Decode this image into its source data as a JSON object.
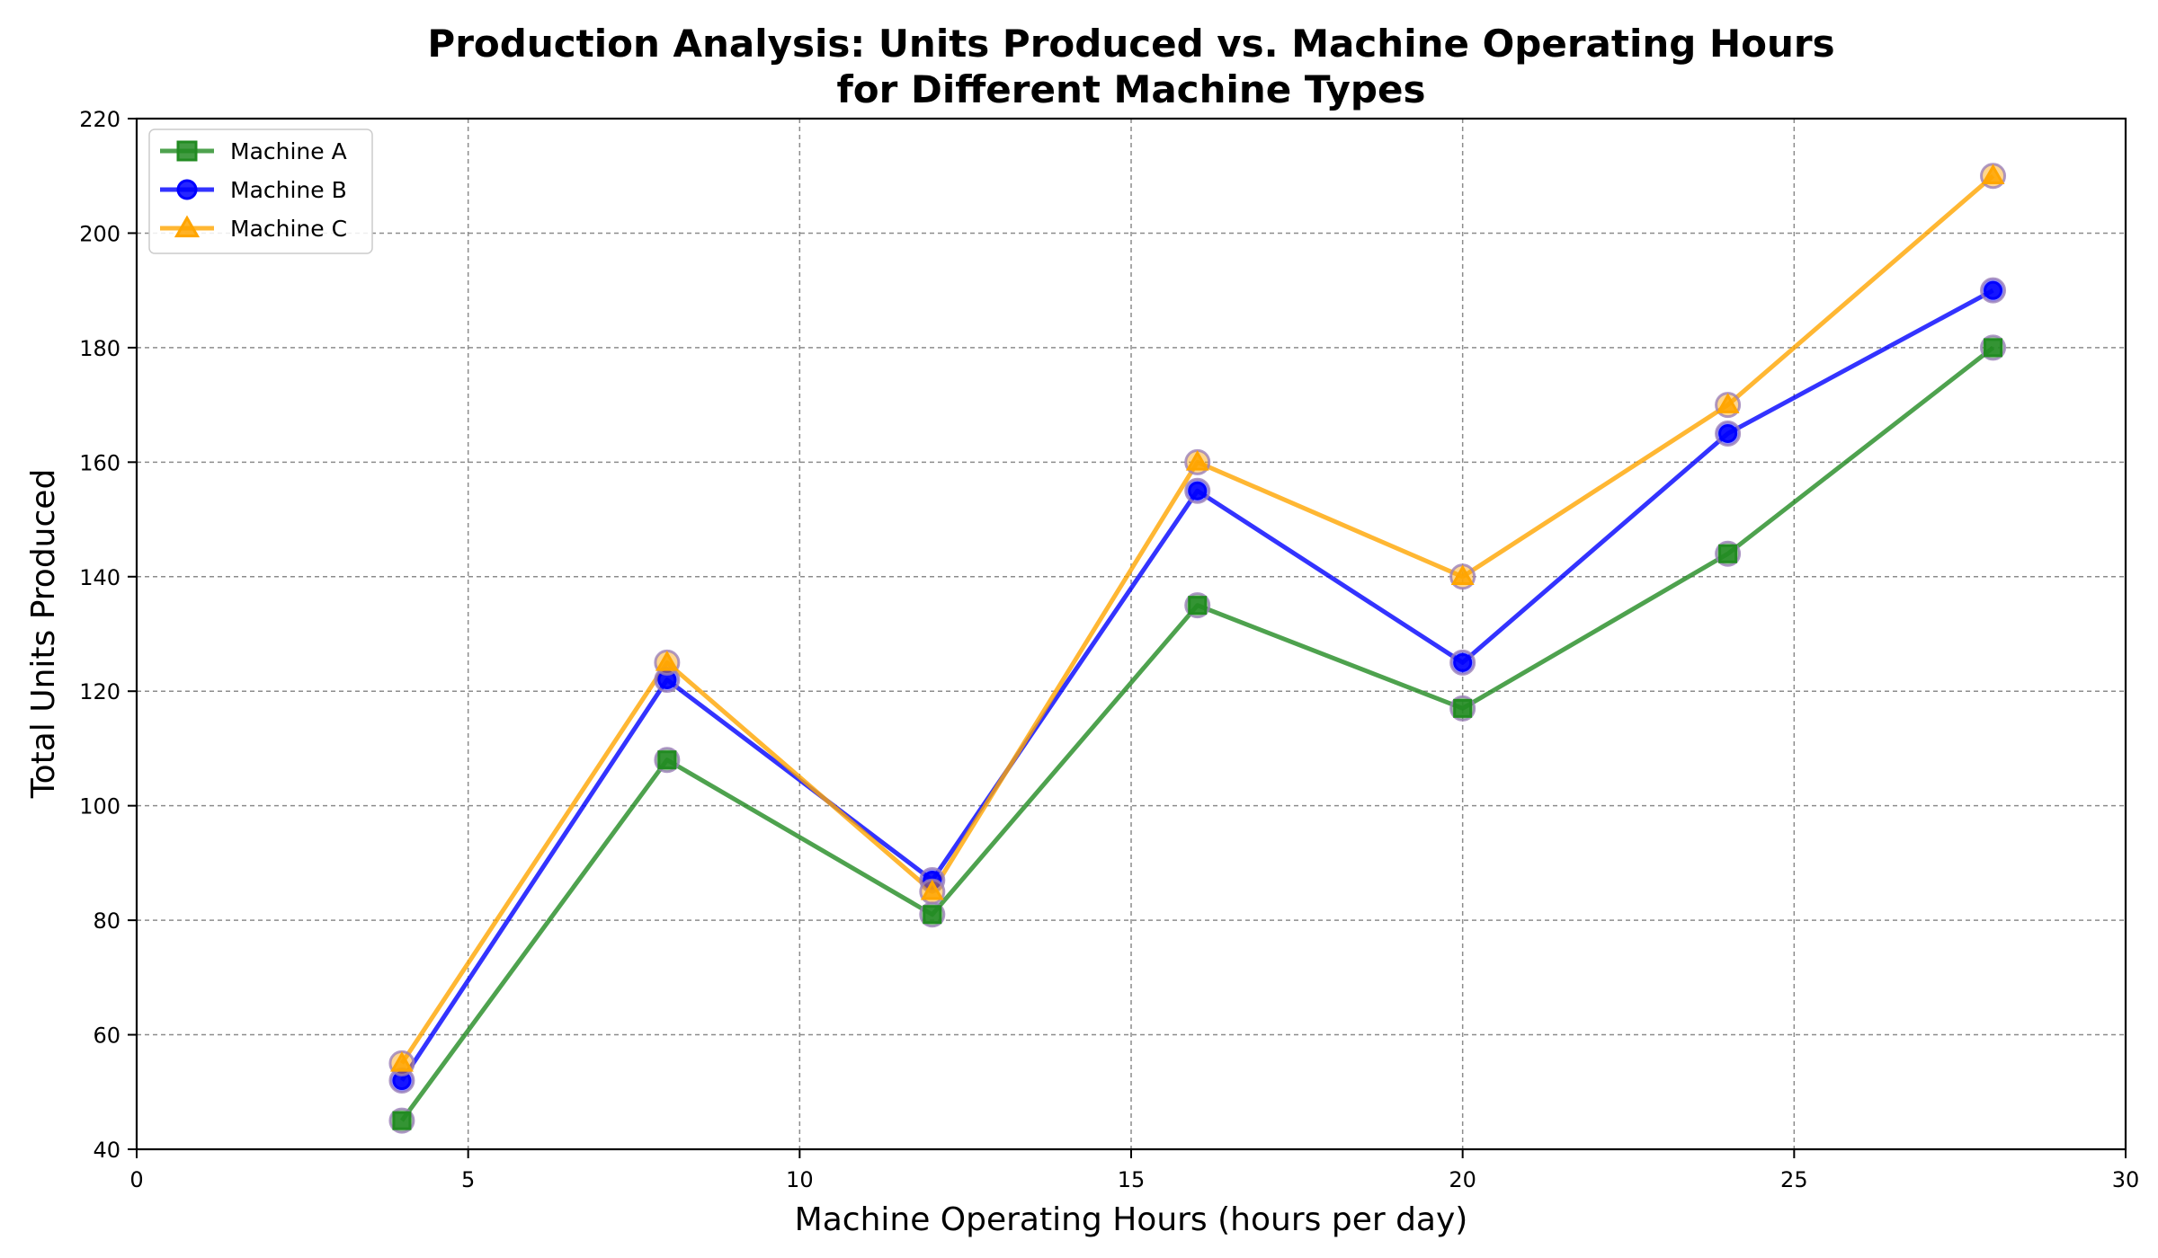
{
  "chart_data": {
    "type": "line",
    "title_line1": "Production Analysis: Units Produced vs. Machine Operating Hours",
    "title_line2": "for Different Machine Types",
    "xlabel": "Machine Operating Hours (hours per day)",
    "ylabel": "Total Units Produced",
    "xlim": [
      0,
      30
    ],
    "ylim": [
      40,
      220
    ],
    "xticks": [
      0,
      5,
      10,
      15,
      20,
      25,
      30
    ],
    "yticks": [
      40,
      60,
      80,
      100,
      120,
      140,
      160,
      180,
      200,
      220
    ],
    "grid": true,
    "legend_position": "top-left",
    "x": [
      4,
      8,
      12,
      16,
      20,
      24,
      28
    ],
    "series": [
      {
        "name": "Machine A",
        "values": [
          45,
          108,
          81,
          135,
          117,
          144,
          180
        ],
        "color": "#228B22",
        "marker": "square"
      },
      {
        "name": "Machine B",
        "values": [
          52,
          122,
          87,
          155,
          125,
          165,
          190
        ],
        "color": "#0000FF",
        "marker": "circle"
      },
      {
        "name": "Machine C",
        "values": [
          55,
          125,
          85,
          160,
          140,
          170,
          210
        ],
        "color": "#FFA500",
        "marker": "triangle"
      }
    ]
  }
}
